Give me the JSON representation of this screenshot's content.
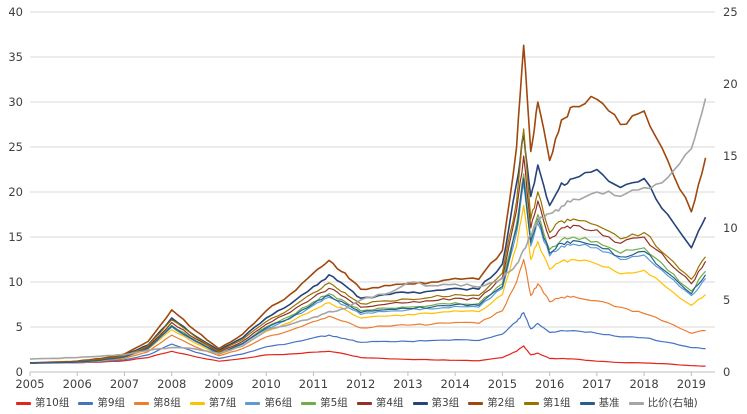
{
  "chart_data": {
    "type": "line",
    "title": "",
    "xlabel": "",
    "ylabel": "",
    "x": [
      2005,
      2005.5,
      2006,
      2006.5,
      2007,
      2007.5,
      2008,
      2008.5,
      2009,
      2009.5,
      2010,
      2010.5,
      2011,
      2011.33,
      2011.67,
      2012,
      2012.5,
      2013,
      2013.5,
      2014,
      2014.5,
      2015,
      2015.3,
      2015.45,
      2015.6,
      2015.75,
      2016,
      2016.25,
      2016.5,
      2017,
      2017.5,
      2018,
      2018.5,
      2019,
      2019.3
    ],
    "x_tick_labels": [
      "2005",
      "2006",
      "2007",
      "2008",
      "2009",
      "2010",
      "2011",
      "2012",
      "2013",
      "2014",
      "2015",
      "2016",
      "2017",
      "2018",
      "2019"
    ],
    "x_range": [
      2005,
      2019.5
    ],
    "axis_left": {
      "min": 0,
      "max": 40,
      "step": 5,
      "labels": [
        "0",
        "5",
        "10",
        "15",
        "20",
        "25",
        "30",
        "35",
        "40"
      ]
    },
    "axis_right": {
      "min": 0,
      "max": 25,
      "step": 5,
      "labels": [
        "0",
        "5",
        "10",
        "15",
        "20",
        "25"
      ]
    },
    "grid": "horizontal",
    "legend_position": "bottom",
    "series": [
      {
        "name": "第10组",
        "color": "#E5231B",
        "axis": "left",
        "values": [
          1.0,
          1.0,
          1.02,
          1.1,
          1.25,
          1.6,
          2.3,
          1.7,
          1.2,
          1.5,
          1.9,
          2.0,
          2.2,
          2.3,
          2.0,
          1.6,
          1.5,
          1.4,
          1.35,
          1.3,
          1.25,
          1.6,
          2.3,
          2.9,
          1.9,
          2.1,
          1.5,
          1.5,
          1.45,
          1.2,
          1.05,
          1.0,
          0.9,
          0.7,
          0.65
        ]
      },
      {
        "name": "第9组",
        "color": "#4472C4",
        "axis": "left",
        "values": [
          1.0,
          1.02,
          1.05,
          1.15,
          1.35,
          1.9,
          3.1,
          2.2,
          1.5,
          2.0,
          2.8,
          3.2,
          3.8,
          4.1,
          3.7,
          3.3,
          3.4,
          3.4,
          3.5,
          3.6,
          3.5,
          4.2,
          5.6,
          6.6,
          4.8,
          5.4,
          4.4,
          4.6,
          4.6,
          4.3,
          3.9,
          3.8,
          3.3,
          2.7,
          2.6
        ]
      },
      {
        "name": "第8组",
        "color": "#ED7D31",
        "axis": "left",
        "values": [
          1.0,
          1.03,
          1.07,
          1.22,
          1.5,
          2.25,
          4.1,
          2.8,
          1.8,
          2.6,
          3.9,
          4.6,
          5.6,
          6.2,
          5.6,
          4.9,
          5.1,
          5.2,
          5.3,
          5.5,
          5.4,
          6.8,
          10.0,
          12.5,
          8.5,
          9.8,
          7.8,
          8.3,
          8.4,
          7.9,
          7.2,
          6.5,
          5.5,
          4.3,
          4.6
        ]
      },
      {
        "name": "第7组",
        "color": "#FFC000",
        "axis": "left",
        "values": [
          1.0,
          1.04,
          1.09,
          1.27,
          1.6,
          2.5,
          4.7,
          3.2,
          1.95,
          2.9,
          4.5,
          5.5,
          6.9,
          7.7,
          6.9,
          6.0,
          6.2,
          6.4,
          6.5,
          6.8,
          6.7,
          8.6,
          14.0,
          18.5,
          12.5,
          14.5,
          11.4,
          12.3,
          12.5,
          12.0,
          10.9,
          11.3,
          9.3,
          7.4,
          8.6
        ]
      },
      {
        "name": "第6组",
        "color": "#5B9BD5",
        "axis": "left",
        "values": [
          1.0,
          1.05,
          1.1,
          1.3,
          1.65,
          2.6,
          5.0,
          3.4,
          2.0,
          3.1,
          4.8,
          5.9,
          7.4,
          8.3,
          7.4,
          6.4,
          6.7,
          6.9,
          7.0,
          7.3,
          7.2,
          9.3,
          15.5,
          21.0,
          14.0,
          16.5,
          12.9,
          14.0,
          14.2,
          13.8,
          12.5,
          13.0,
          10.7,
          8.5,
          10.4
        ]
      },
      {
        "name": "第5组",
        "color": "#70AD47",
        "axis": "left",
        "values": [
          1.0,
          1.05,
          1.11,
          1.32,
          1.7,
          2.7,
          5.2,
          3.5,
          2.1,
          3.2,
          5.0,
          6.2,
          7.8,
          8.7,
          7.8,
          6.8,
          7.1,
          7.2,
          7.4,
          7.7,
          7.6,
          9.8,
          16.5,
          22.0,
          14.8,
          17.5,
          13.6,
          14.7,
          15.0,
          14.5,
          13.2,
          13.8,
          11.3,
          9.0,
          11.2
        ]
      },
      {
        "name": "第4组",
        "color": "#943126",
        "axis": "left",
        "values": [
          1.0,
          1.06,
          1.12,
          1.35,
          1.75,
          2.8,
          5.5,
          3.7,
          2.2,
          3.4,
          5.3,
          6.6,
          8.3,
          9.3,
          8.3,
          7.2,
          7.5,
          7.7,
          7.9,
          8.2,
          8.1,
          10.5,
          18.0,
          24.0,
          16.0,
          19.0,
          14.8,
          16.0,
          16.3,
          15.8,
          14.3,
          15.0,
          12.3,
          9.8,
          12.3
        ]
      },
      {
        "name": "第3组",
        "color": "#264478",
        "axis": "left",
        "values": [
          1.0,
          1.08,
          1.15,
          1.42,
          1.85,
          3.0,
          6.0,
          4.0,
          2.4,
          3.8,
          6.0,
          7.5,
          9.5,
          10.8,
          9.6,
          8.2,
          8.6,
          8.8,
          9.0,
          9.3,
          9.2,
          12.0,
          21.0,
          26.5,
          19.5,
          23.0,
          18.5,
          21.0,
          21.5,
          22.5,
          20.5,
          21.5,
          17.5,
          13.8,
          17.2
        ]
      },
      {
        "name": "第2组",
        "color": "#9E480E",
        "axis": "left",
        "values": [
          1.0,
          1.1,
          1.2,
          1.5,
          2.0,
          3.4,
          6.9,
          4.6,
          2.6,
          4.2,
          6.8,
          8.6,
          11.0,
          12.4,
          11.0,
          9.2,
          9.6,
          9.8,
          10.0,
          10.4,
          10.3,
          13.5,
          25.0,
          36.3,
          24.5,
          30.0,
          23.5,
          28.0,
          29.5,
          30.3,
          27.5,
          29.0,
          23.5,
          17.8,
          23.8
        ]
      },
      {
        "name": "第1组",
        "color": "#997300",
        "axis": "left",
        "values": [
          1.0,
          1.07,
          1.14,
          1.38,
          1.8,
          2.9,
          5.8,
          3.9,
          2.3,
          3.6,
          5.6,
          7.0,
          8.8,
          9.9,
          8.8,
          7.6,
          7.9,
          8.1,
          8.3,
          8.6,
          8.5,
          11.0,
          19.0,
          27.0,
          17.0,
          20.0,
          15.5,
          16.8,
          17.0,
          16.3,
          14.8,
          15.5,
          12.8,
          10.3,
          12.8
        ]
      },
      {
        "name": "基准",
        "color": "#255E91",
        "axis": "left",
        "values": [
          1.0,
          1.05,
          1.1,
          1.31,
          1.68,
          2.65,
          5.1,
          3.45,
          2.05,
          3.15,
          4.9,
          6.0,
          7.6,
          8.5,
          7.6,
          6.6,
          6.9,
          7.05,
          7.2,
          7.5,
          7.4,
          9.5,
          16.0,
          21.5,
          14.4,
          17.0,
          13.2,
          14.3,
          14.6,
          14.1,
          12.8,
          13.4,
          11.0,
          8.7,
          10.8
        ]
      },
      {
        "name": "比价(右轴)",
        "color": "#A5A5A5",
        "axis": "right",
        "values": [
          0.9,
          0.95,
          1.0,
          1.1,
          1.2,
          1.5,
          1.7,
          1.6,
          1.3,
          1.8,
          2.9,
          3.3,
          3.8,
          4.2,
          4.4,
          5.0,
          5.4,
          6.2,
          6.0,
          6.1,
          5.9,
          6.5,
          7.5,
          8.5,
          9.5,
          10.5,
          11.0,
          11.5,
          12.0,
          12.5,
          12.2,
          12.8,
          13.5,
          15.5,
          19.0
        ]
      }
    ],
    "colors": {
      "grid": "#D9D9D9",
      "axis_line": "#BFBFBF",
      "tick_text": "#404040"
    }
  }
}
